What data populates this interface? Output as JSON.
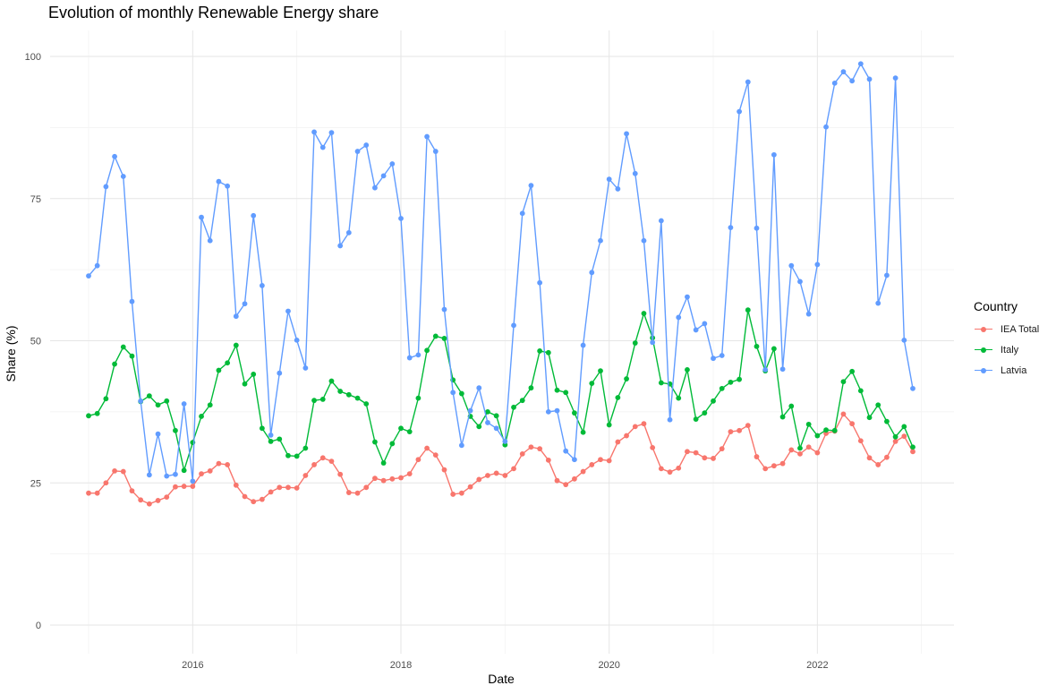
{
  "chart_data": {
    "type": "line",
    "title": "Evolution of monthly Renewable Energy share",
    "xlabel": "Date",
    "ylabel": "Share (%)",
    "x_ticks": [
      "2016",
      "2018",
      "2020",
      "2022"
    ],
    "y_ticks": [
      "0",
      "25",
      "50",
      "75",
      "100"
    ],
    "ylim": [
      0,
      100
    ],
    "x_range": [
      "2015-01",
      "2022-12"
    ],
    "grid": true,
    "legend_title": "Country",
    "legend_position": "right",
    "start_month": "2015-01",
    "series": [
      {
        "name": "IEA Total",
        "color": "#F8766D",
        "values": [
          23.2,
          23.2,
          25.0,
          27.1,
          27.0,
          23.6,
          22.0,
          21.3,
          21.9,
          22.5,
          24.3,
          24.4,
          24.4,
          26.6,
          27.1,
          28.4,
          28.2,
          24.6,
          22.6,
          21.7,
          22.1,
          23.4,
          24.2,
          24.2,
          24.1,
          26.3,
          28.2,
          29.4,
          28.8,
          26.5,
          23.3,
          23.2,
          24.2,
          25.8,
          25.4,
          25.7,
          25.9,
          26.6,
          29.1,
          31.1,
          29.9,
          27.3,
          23.0,
          23.2,
          24.3,
          25.6,
          26.3,
          26.7,
          26.3,
          27.5,
          30.1,
          31.3,
          31.0,
          29.0,
          25.4,
          24.7,
          25.7,
          27.0,
          28.2,
          29.1,
          28.9,
          32.2,
          33.3,
          34.9,
          35.4,
          31.2,
          27.5,
          26.9,
          27.6,
          30.5,
          30.3,
          29.4,
          29.3,
          31.0,
          34.0,
          34.2,
          35.1,
          29.6,
          27.5,
          28.0,
          28.4,
          30.8,
          30.1,
          31.3,
          30.3,
          33.7,
          34.1,
          37.1,
          35.4,
          32.4,
          29.4,
          28.2,
          29.5,
          32.3,
          33.2,
          30.5
        ]
      },
      {
        "name": "Italy",
        "color": "#00BA38",
        "values": [
          36.8,
          37.2,
          39.8,
          45.9,
          48.9,
          47.3,
          39.3,
          40.3,
          38.7,
          39.4,
          34.2,
          27.2,
          32.1,
          36.7,
          38.7,
          44.8,
          46.1,
          49.2,
          42.4,
          44.1,
          34.6,
          32.3,
          32.7,
          29.8,
          29.7,
          31.1,
          39.5,
          39.7,
          42.9,
          41.1,
          40.5,
          39.9,
          38.9,
          32.2,
          28.5,
          31.9,
          34.6,
          34.0,
          39.9,
          48.3,
          50.8,
          50.4,
          43.1,
          40.7,
          36.7,
          34.9,
          37.5,
          36.8,
          31.7,
          38.3,
          39.5,
          41.7,
          48.2,
          47.9,
          41.3,
          40.9,
          37.3,
          33.9,
          42.5,
          44.7,
          35.2,
          40.0,
          43.3,
          49.6,
          54.8,
          50.5,
          42.6,
          42.4,
          39.9,
          44.9,
          36.2,
          37.3,
          39.4,
          41.6,
          42.7,
          43.2,
          55.4,
          49.0,
          44.7,
          48.6,
          36.6,
          38.5,
          31.1,
          35.3,
          33.3,
          34.3,
          34.2,
          42.8,
          44.6,
          41.2,
          36.5,
          38.7,
          35.8,
          33.1,
          34.9,
          31.3
        ]
      },
      {
        "name": "Latvia",
        "color": "#619CFF",
        "values": [
          61.4,
          63.2,
          77.1,
          82.4,
          78.9,
          56.9,
          39.4,
          26.4,
          33.6,
          26.2,
          26.5,
          38.9,
          25.3,
          71.7,
          67.6,
          78.0,
          77.2,
          54.3,
          56.5,
          72.0,
          59.7,
          33.4,
          44.3,
          55.2,
          50.1,
          45.2,
          86.7,
          84.0,
          86.6,
          66.7,
          69.0,
          83.3,
          84.4,
          76.9,
          79.0,
          81.1,
          71.5,
          47.0,
          47.5,
          85.9,
          83.3,
          55.5,
          40.9,
          31.6,
          37.7,
          41.7,
          35.6,
          34.6,
          32.3,
          52.7,
          72.4,
          77.3,
          60.2,
          37.5,
          37.7,
          30.6,
          29.1,
          49.2,
          62.0,
          67.6,
          78.4,
          76.7,
          86.4,
          79.4,
          67.6,
          49.7,
          71.1,
          36.1,
          54.1,
          57.7,
          51.9,
          53.0,
          46.9,
          47.4,
          69.9,
          90.3,
          95.5,
          69.8,
          44.9,
          82.7,
          45.0,
          63.2,
          60.4,
          54.7,
          63.4,
          87.6,
          95.3,
          97.3,
          95.7,
          98.7,
          96.0,
          56.6,
          61.5,
          96.2,
          50.1,
          41.6
        ]
      }
    ]
  }
}
